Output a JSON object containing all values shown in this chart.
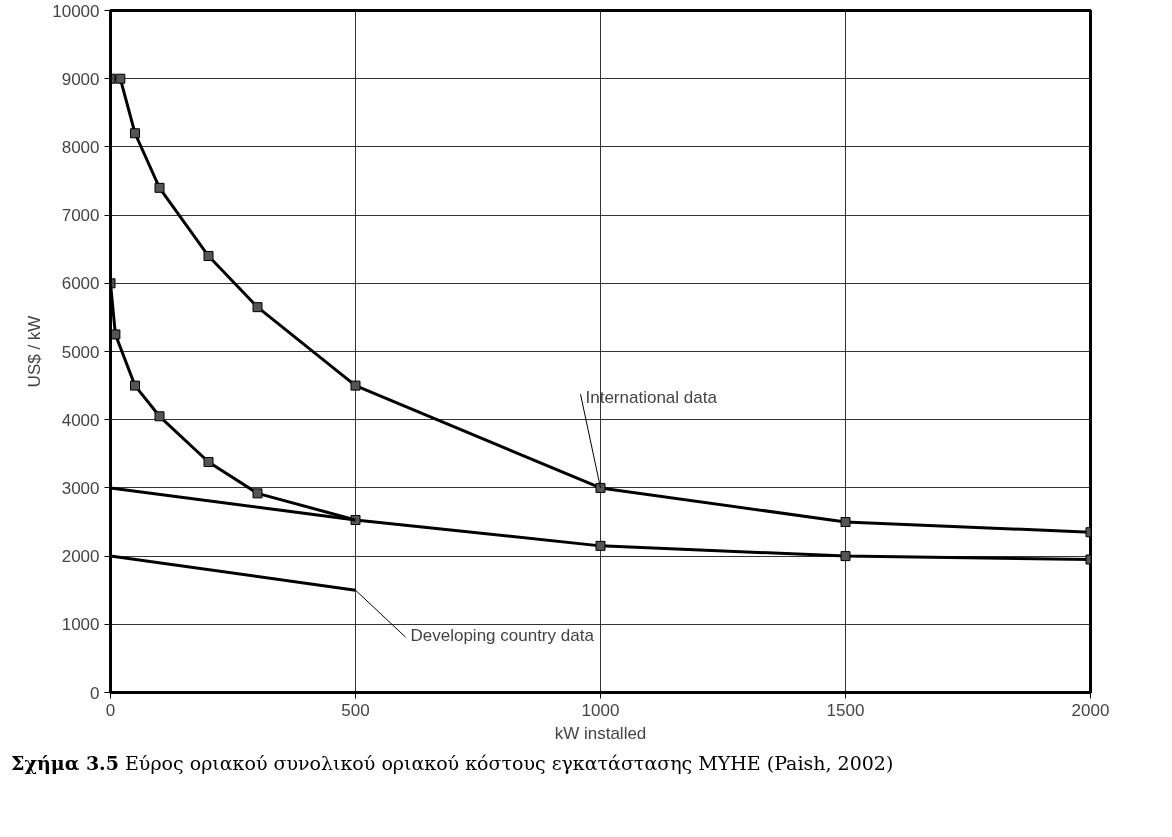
{
  "chart_data": {
    "type": "line",
    "xlabel": "kW installed",
    "ylabel": "US$ / kW",
    "xlim": [
      0,
      2000
    ],
    "xticks": [
      0,
      500,
      1000,
      1500,
      2000
    ],
    "ylim": [
      0,
      10000
    ],
    "yticks": [
      0,
      1000,
      2000,
      3000,
      4000,
      5000,
      6000,
      7000,
      8000,
      9000,
      10000
    ],
    "grid": true,
    "marker": "square",
    "line_style": "solid",
    "series": [
      {
        "color": "#000000",
        "x": [
          0,
          20,
          50,
          100,
          200,
          300,
          500,
          1000,
          1500,
          2000
        ],
        "values": [
          9000,
          9000,
          8200,
          7400,
          6400,
          5650,
          4500,
          3000,
          2500,
          2350
        ]
      },
      {
        "color": "#000000",
        "x": [
          0,
          10,
          50,
          100,
          200,
          300,
          500,
          1000,
          1500,
          2000
        ],
        "values": [
          6000,
          5250,
          4500,
          4050,
          3380,
          2920,
          2530,
          2150,
          2000,
          1950
        ]
      },
      {
        "color": "#000000",
        "marker": "none",
        "x": [
          0,
          500
        ],
        "values": [
          3000,
          2530
        ]
      },
      {
        "color": "#000000",
        "marker": "none",
        "x": [
          0,
          500
        ],
        "values": [
          2000,
          1500
        ]
      }
    ],
    "annotations": [
      {
        "text": "International data",
        "x": 1000,
        "y": 3000
      },
      {
        "text": "Developing country data",
        "x": 500,
        "y": 1500
      },
      "Σχήμα 3.5 Εύρος οριακού συνολικού οριακού κόστους εγκατάστασης ΜΥΗΕ (Paish, 2002)"
    ]
  }
}
